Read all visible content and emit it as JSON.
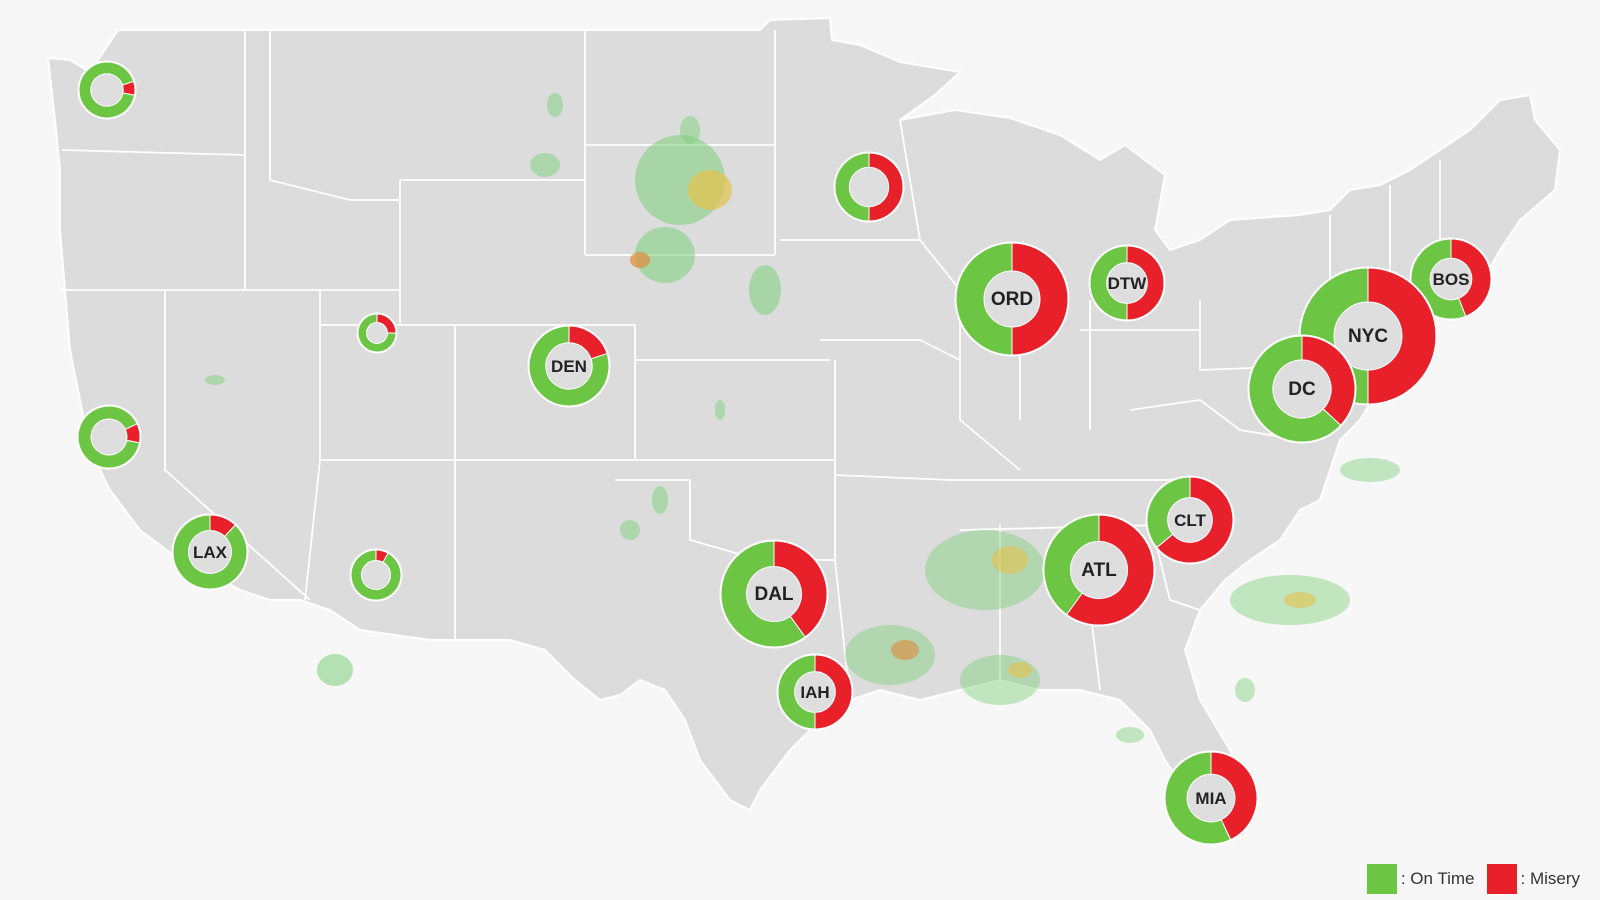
{
  "colors": {
    "land": "#dcdcdc",
    "border": "#ffffff",
    "background": "#f7f7f7",
    "on_time": "#6cc644",
    "misery": "#e8202a",
    "radar_green": "#7ccf7a",
    "radar_yellow": "#e6c24c",
    "radar_orange": "#e08a3a"
  },
  "legend": {
    "on_time_label": ": On Time",
    "misery_label": ": Misery"
  },
  "airports": [
    {
      "label": "",
      "name": "seattle",
      "on_time_fraction": 0.92
    },
    {
      "label": "",
      "name": "minneapolis",
      "on_time_fraction": 0.5
    },
    {
      "label": "",
      "name": "salt-lake-city",
      "on_time_fraction": 0.75
    },
    {
      "label": "",
      "name": "san-francisco",
      "on_time_fraction": 0.9
    },
    {
      "label": "",
      "name": "phoenix",
      "on_time_fraction": 0.92
    },
    {
      "label": "ORD",
      "name": "ord",
      "on_time_fraction": 0.5
    },
    {
      "label": "DTW",
      "name": "dtw",
      "on_time_fraction": 0.5
    },
    {
      "label": "BOS",
      "name": "bos",
      "on_time_fraction": 0.56
    },
    {
      "label": "NYC",
      "name": "nyc",
      "on_time_fraction": 0.5
    },
    {
      "label": "DC",
      "name": "dc",
      "on_time_fraction": 0.63
    },
    {
      "label": "DEN",
      "name": "den",
      "on_time_fraction": 0.8
    },
    {
      "label": "LAX",
      "name": "lax",
      "on_time_fraction": 0.88
    },
    {
      "label": "DAL",
      "name": "dal",
      "on_time_fraction": 0.6
    },
    {
      "label": "IAH",
      "name": "iah",
      "on_time_fraction": 0.5
    },
    {
      "label": "ATL",
      "name": "atl",
      "on_time_fraction": 0.4
    },
    {
      "label": "CLT",
      "name": "clt",
      "on_time_fraction": 0.36
    },
    {
      "label": "MIA",
      "name": "mia",
      "on_time_fraction": 0.57
    }
  ]
}
